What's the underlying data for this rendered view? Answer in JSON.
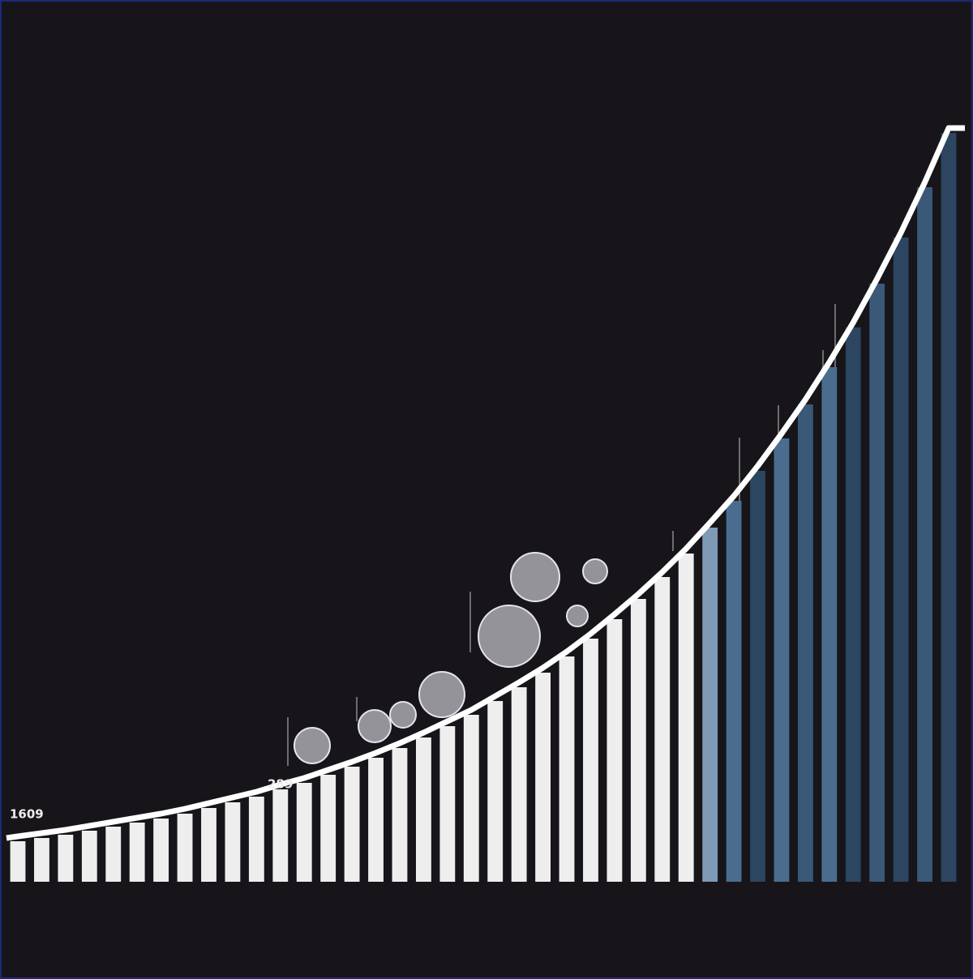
{
  "chart_data": {
    "type": "bar",
    "annotations": [
      "1609",
      "289"
    ],
    "values": [
      50,
      54,
      58,
      63,
      68,
      73,
      78,
      84,
      91,
      98,
      105,
      114,
      122,
      132,
      142,
      153,
      165,
      178,
      192,
      206,
      223,
      240,
      258,
      278,
      300,
      324,
      349,
      376,
      405,
      437,
      470,
      507,
      547,
      589,
      635,
      684,
      738,
      795,
      857,
      924
    ],
    "colors": [
      "#eeeeee",
      "#eeeeee",
      "#eeeeee",
      "#eeeeee",
      "#eeeeee",
      "#eeeeee",
      "#eeeeee",
      "#eeeeee",
      "#eeeeee",
      "#eeeeee",
      "#eeeeee",
      "#eeeeee",
      "#eeeeee",
      "#eeeeee",
      "#eeeeee",
      "#eeeeee",
      "#eeeeee",
      "#eeeeee",
      "#eeeeee",
      "#eeeeee",
      "#eeeeee",
      "#eeeeee",
      "#eeeeee",
      "#eeeeee",
      "#eeeeee",
      "#eeeeee",
      "#eeeeee",
      "#eeeeee",
      "#eeeeee",
      "#7f9ab5",
      "#4a6d8f",
      "#2c4560",
      "#4a6d8f",
      "#3a5878",
      "#4a6d8f",
      "#2c4560",
      "#3a5878",
      "#2c4560",
      "#3a5878",
      "#2c4560"
    ]
  }
}
